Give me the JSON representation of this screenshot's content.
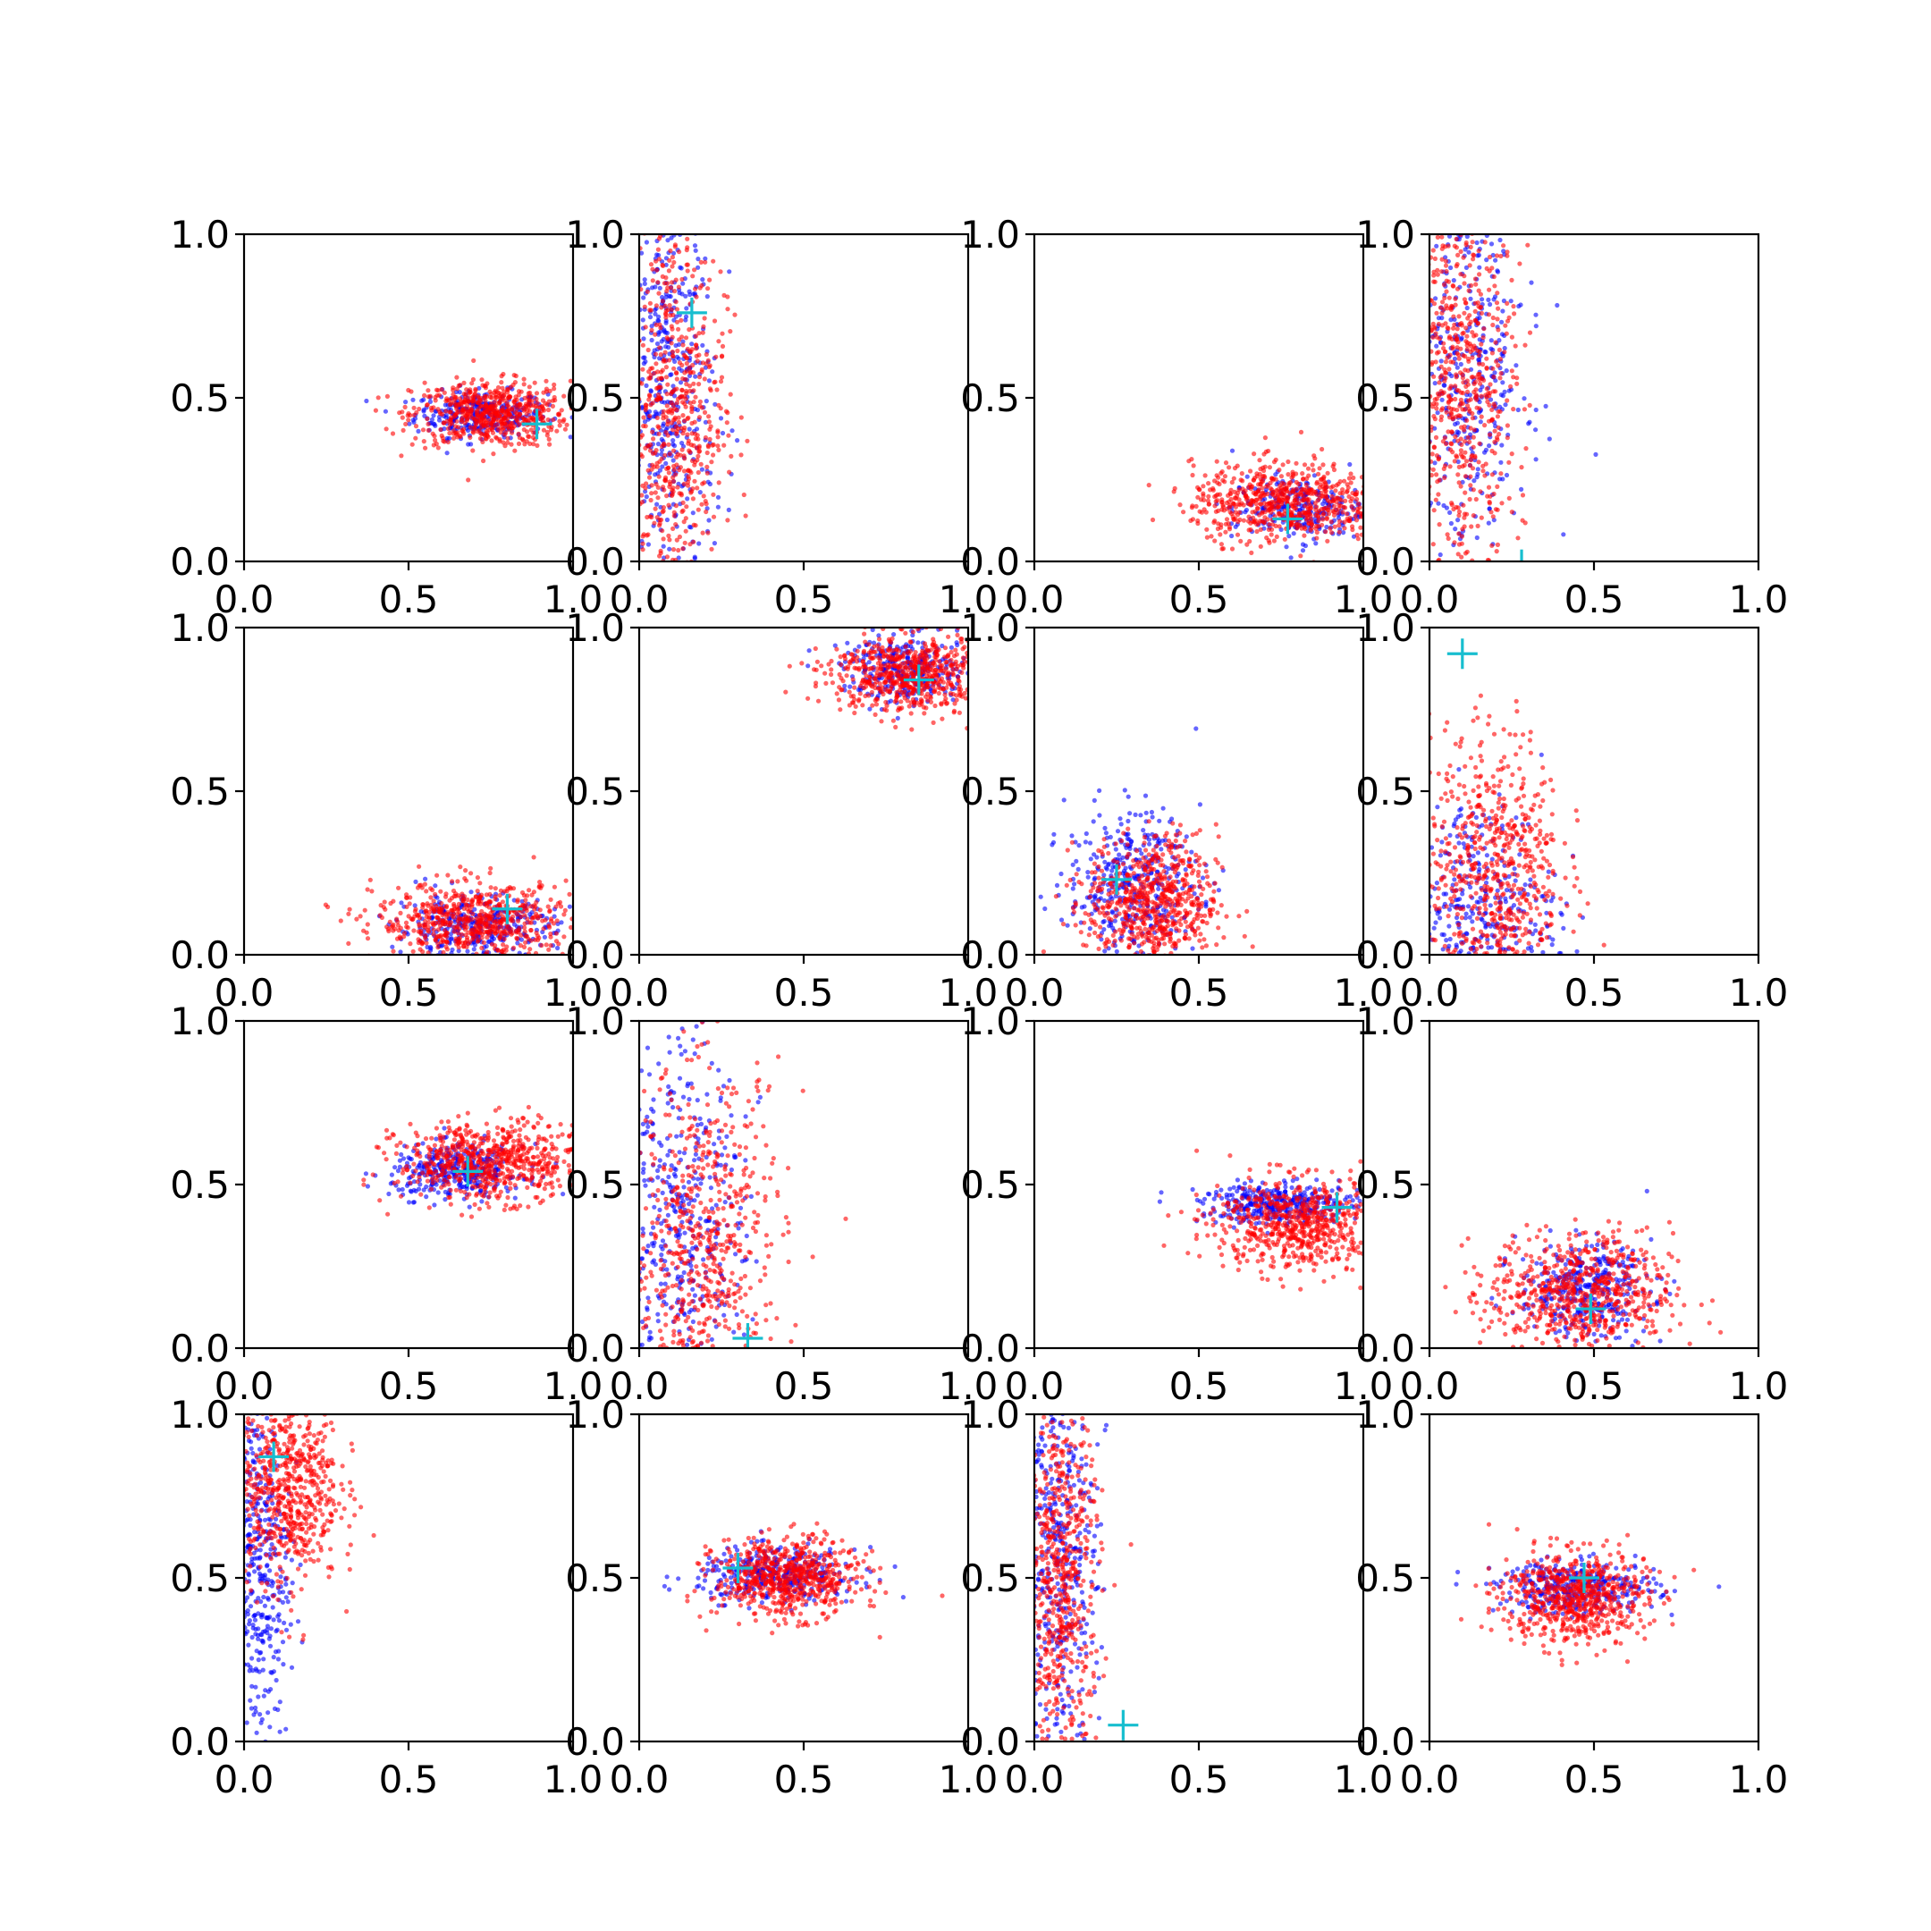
{
  "figure": {
    "background": "#ffffff"
  },
  "chart_data": {
    "type": "scatter",
    "layout_grid": {
      "rows": 4,
      "cols": 4
    },
    "xlim": [
      0,
      1
    ],
    "ylim": [
      0,
      1
    ],
    "xticks": [
      "0.0",
      "0.5",
      "1.0"
    ],
    "yticks": [
      "0.0",
      "0.5",
      "1.0"
    ],
    "grid": false,
    "legend": "none",
    "series_styles": [
      {
        "key": "blue",
        "color": "#0000ff",
        "alpha": 0.6
      },
      {
        "key": "red",
        "color": "#ff0000",
        "alpha": 0.6
      }
    ],
    "marker_color": "#17becf",
    "panels": [
      {
        "marker": [
          0.89,
          0.42
        ],
        "blue": {
          "cx": 0.72,
          "cy": 0.45,
          "sx": 0.1,
          "sy": 0.035,
          "n": 300
        },
        "red": {
          "cx": 0.75,
          "cy": 0.45,
          "sx": 0.12,
          "sy": 0.05,
          "n": 600
        }
      },
      {
        "marker": [
          0.16,
          0.76
        ],
        "blue": {
          "cx": 0.09,
          "cy": 0.5,
          "sx": 0.07,
          "sy": 0.32,
          "n": 450
        },
        "red": {
          "cx": 0.1,
          "cy": 0.45,
          "sx": 0.08,
          "sy": 0.3,
          "n": 650
        }
      },
      {
        "marker": [
          0.77,
          0.13
        ],
        "blue": {
          "cx": 0.8,
          "cy": 0.16,
          "sx": 0.1,
          "sy": 0.05,
          "n": 250
        },
        "red": {
          "cx": 0.76,
          "cy": 0.18,
          "sx": 0.14,
          "sy": 0.06,
          "n": 650
        }
      },
      {
        "marker": [
          0.28,
          -0.01
        ],
        "blue": {
          "cx": 0.12,
          "cy": 0.6,
          "sx": 0.09,
          "sy": 0.3,
          "n": 400
        },
        "red": {
          "cx": 0.1,
          "cy": 0.55,
          "sx": 0.08,
          "sy": 0.3,
          "n": 650
        }
      },
      {
        "marker": [
          0.8,
          0.14
        ],
        "blue": {
          "cx": 0.7,
          "cy": 0.08,
          "sx": 0.12,
          "sy": 0.05,
          "n": 350
        },
        "red": {
          "cx": 0.7,
          "cy": 0.1,
          "sx": 0.15,
          "sy": 0.06,
          "n": 650
        }
      },
      {
        "marker": [
          0.85,
          0.84
        ],
        "blue": {
          "cx": 0.82,
          "cy": 0.87,
          "sx": 0.1,
          "sy": 0.05,
          "n": 300
        },
        "red": {
          "cx": 0.82,
          "cy": 0.86,
          "sx": 0.12,
          "sy": 0.06,
          "n": 650
        }
      },
      {
        "marker": [
          0.25,
          0.23
        ],
        "blue": {
          "cx": 0.3,
          "cy": 0.22,
          "sx": 0.1,
          "sy": 0.11,
          "n": 400
        },
        "red": {
          "cx": 0.36,
          "cy": 0.16,
          "sx": 0.1,
          "sy": 0.1,
          "n": 650
        }
      },
      {
        "marker": [
          0.1,
          0.92
        ],
        "blue": {
          "cx": 0.15,
          "cy": 0.12,
          "sx": 0.12,
          "sy": 0.18,
          "n": 400
        },
        "red": {
          "cx": 0.2,
          "cy": 0.25,
          "sx": 0.1,
          "sy": 0.22,
          "n": 650
        }
      },
      {
        "marker": [
          0.68,
          0.54
        ],
        "blue": {
          "cx": 0.65,
          "cy": 0.54,
          "sx": 0.1,
          "sy": 0.04,
          "n": 350
        },
        "red": {
          "cx": 0.75,
          "cy": 0.57,
          "sx": 0.14,
          "sy": 0.06,
          "n": 650
        }
      },
      {
        "marker": [
          0.33,
          0.03
        ],
        "blue": {
          "cx": 0.12,
          "cy": 0.35,
          "sx": 0.1,
          "sy": 0.3,
          "n": 450
        },
        "red": {
          "cx": 0.2,
          "cy": 0.3,
          "sx": 0.12,
          "sy": 0.28,
          "n": 650
        }
      },
      {
        "marker": [
          0.92,
          0.43
        ],
        "blue": {
          "cx": 0.75,
          "cy": 0.44,
          "sx": 0.12,
          "sy": 0.03,
          "n": 350
        },
        "red": {
          "cx": 0.8,
          "cy": 0.38,
          "sx": 0.13,
          "sy": 0.07,
          "n": 650
        }
      },
      {
        "marker": [
          0.49,
          0.12
        ],
        "blue": {
          "cx": 0.47,
          "cy": 0.18,
          "sx": 0.1,
          "sy": 0.07,
          "n": 350
        },
        "red": {
          "cx": 0.46,
          "cy": 0.17,
          "sx": 0.14,
          "sy": 0.09,
          "n": 650
        }
      },
      {
        "marker": [
          0.09,
          0.87
        ],
        "blue": {
          "cx": 0.04,
          "cy": 0.55,
          "sx": 0.05,
          "sy": 0.3,
          "n": 450
        },
        "red": {
          "cx": 0.13,
          "cy": 0.78,
          "sx": 0.08,
          "sy": 0.15,
          "n": 650
        }
      },
      {
        "marker": [
          0.3,
          0.53
        ],
        "blue": {
          "cx": 0.42,
          "cy": 0.51,
          "sx": 0.12,
          "sy": 0.04,
          "n": 350
        },
        "red": {
          "cx": 0.45,
          "cy": 0.5,
          "sx": 0.11,
          "sy": 0.06,
          "n": 650
        }
      },
      {
        "marker": [
          0.27,
          0.05
        ],
        "blue": {
          "cx": 0.07,
          "cy": 0.55,
          "sx": 0.06,
          "sy": 0.3,
          "n": 450
        },
        "red": {
          "cx": 0.08,
          "cy": 0.5,
          "sx": 0.06,
          "sy": 0.3,
          "n": 650
        }
      },
      {
        "marker": [
          0.47,
          0.5
        ],
        "blue": {
          "cx": 0.45,
          "cy": 0.47,
          "sx": 0.12,
          "sy": 0.04,
          "n": 350
        },
        "red": {
          "cx": 0.44,
          "cy": 0.44,
          "sx": 0.11,
          "sy": 0.07,
          "n": 650
        }
      }
    ]
  }
}
